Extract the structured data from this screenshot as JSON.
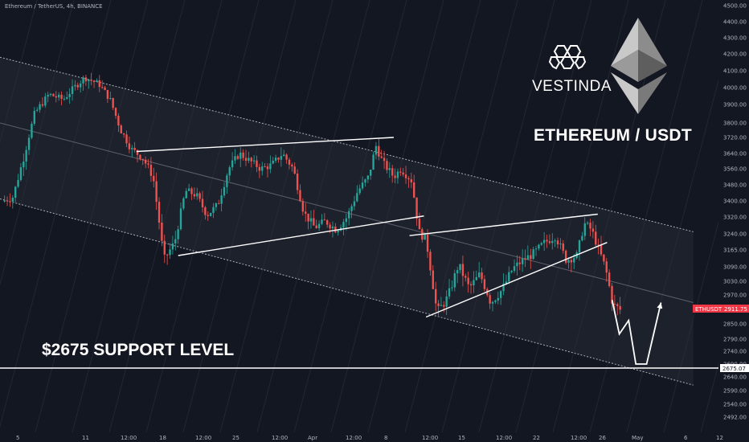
{
  "header": {
    "symbol_title": "Ethereum / TetherUS, 4h, BINANCE"
  },
  "branding": {
    "name": "VESTINDA",
    "pair_title": "ETHEREUM / USDT",
    "logo_icon": "vestinda-logo-icon",
    "ethereum_icon": "ethereum-diamond-icon"
  },
  "annotations": {
    "support_title": "$2675 SUPPORT LEVEL"
  },
  "colors": {
    "background": "#131722",
    "up_candle": "#26a69a",
    "down_candle": "#ef5350",
    "drawing": "#ffffff",
    "price_label_bg": "#f23645"
  },
  "chart_data": {
    "type": "candlestick",
    "symbol": "ETHUSDT",
    "interval": "4h",
    "exchange": "BINANCE",
    "ylim": [
      2460,
      4520
    ],
    "y_ticks": [
      "4500.00",
      "4400.00",
      "4300.00",
      "4200.00",
      "4100.00",
      "4000.00",
      "3900.00",
      "3800.00",
      "3720.00",
      "3640.00",
      "3560.00",
      "3480.00",
      "3400.00",
      "3320.00",
      "3240.00",
      "3165.00",
      "3090.00",
      "3030.00",
      "2970.00",
      "2910.00",
      "2850.00",
      "2790.00",
      "2740.00",
      "2690.00",
      "2640.00",
      "2590.00",
      "2540.00",
      "2492.00"
    ],
    "x_ticks": [
      "5",
      "11",
      "12:00",
      "18",
      "12:00",
      "25",
      "12:00",
      "Apr",
      "12:00",
      "8",
      "12:00",
      "15",
      "12:00",
      "22",
      "12:00",
      "26",
      "May",
      "6",
      "12"
    ],
    "current_price": {
      "symbol_label": "ETHUSDT",
      "value": "2911.75"
    },
    "support_level": {
      "label": "2675.07",
      "value": 2675.07
    },
    "price_path": [
      [
        0,
        3390
      ],
      [
        0.02,
        3420
      ],
      [
        0.035,
        3620
      ],
      [
        0.05,
        3850
      ],
      [
        0.07,
        3960
      ],
      [
        0.09,
        3930
      ],
      [
        0.105,
        4000
      ],
      [
        0.12,
        4060
      ],
      [
        0.14,
        4020
      ],
      [
        0.155,
        3930
      ],
      [
        0.17,
        3760
      ],
      [
        0.185,
        3660
      ],
      [
        0.2,
        3620
      ],
      [
        0.215,
        3520
      ],
      [
        0.23,
        3120
      ],
      [
        0.245,
        3200
      ],
      [
        0.26,
        3450
      ],
      [
        0.275,
        3430
      ],
      [
        0.29,
        3330
      ],
      [
        0.305,
        3380
      ],
      [
        0.32,
        3560
      ],
      [
        0.335,
        3640
      ],
      [
        0.35,
        3600
      ],
      [
        0.365,
        3560
      ],
      [
        0.38,
        3580
      ],
      [
        0.395,
        3640
      ],
      [
        0.41,
        3560
      ],
      [
        0.425,
        3340
      ],
      [
        0.44,
        3270
      ],
      [
        0.455,
        3300
      ],
      [
        0.47,
        3260
      ],
      [
        0.485,
        3320
      ],
      [
        0.5,
        3450
      ],
      [
        0.515,
        3520
      ],
      [
        0.525,
        3680
      ],
      [
        0.535,
        3590
      ],
      [
        0.55,
        3520
      ],
      [
        0.56,
        3560
      ],
      [
        0.575,
        3500
      ],
      [
        0.585,
        3250
      ],
      [
        0.595,
        3210
      ],
      [
        0.61,
        2900
      ],
      [
        0.625,
        2960
      ],
      [
        0.64,
        3100
      ],
      [
        0.655,
        3000
      ],
      [
        0.67,
        3060
      ],
      [
        0.685,
        2940
      ],
      [
        0.7,
        2990
      ],
      [
        0.715,
        3080
      ],
      [
        0.73,
        3120
      ],
      [
        0.745,
        3150
      ],
      [
        0.76,
        3200
      ],
      [
        0.775,
        3230
      ],
      [
        0.79,
        3120
      ],
      [
        0.805,
        3140
      ],
      [
        0.815,
        3290
      ],
      [
        0.825,
        3260
      ],
      [
        0.835,
        3170
      ],
      [
        0.845,
        3080
      ],
      [
        0.855,
        2930
      ],
      [
        0.865,
        2911.75
      ]
    ],
    "channel": {
      "upper": [
        [
          0,
          4180
        ],
        [
          0.965,
          3250
        ]
      ],
      "middle": [
        [
          0,
          3800
        ],
        [
          0.965,
          2940
        ]
      ],
      "lower": [
        [
          0,
          3410
        ],
        [
          0.965,
          2610
        ]
      ]
    },
    "patterns": [
      {
        "name": "wedge-1-upper",
        "points": [
          [
            0.19,
            3650
          ],
          [
            0.548,
            3720
          ]
        ]
      },
      {
        "name": "wedge-1-lower",
        "points": [
          [
            0.248,
            3140
          ],
          [
            0.59,
            3325
          ]
        ]
      },
      {
        "name": "wedge-2-upper",
        "points": [
          [
            0.57,
            3232
          ],
          [
            0.832,
            3334
          ]
        ]
      },
      {
        "name": "wedge-2-lower",
        "points": [
          [
            0.593,
            2880
          ],
          [
            0.845,
            3200
          ]
        ]
      }
    ],
    "projection": [
      [
        0.852,
        2950
      ],
      [
        0.862,
        2810
      ],
      [
        0.875,
        2865
      ],
      [
        0.885,
        2690
      ],
      [
        0.9,
        2690
      ],
      [
        0.92,
        2940
      ]
    ],
    "grid": false,
    "legend": "none"
  }
}
